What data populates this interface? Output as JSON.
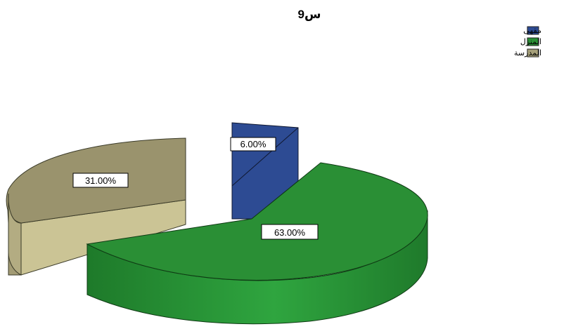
{
  "chart_data": {
    "type": "pie",
    "title": "س9",
    "categories": [
      "مقهى",
      "المنزل",
      "المدرسة"
    ],
    "values": [
      6.0,
      63.0,
      31.0
    ],
    "labels": [
      "6.00%",
      "63.00%",
      "31.00%"
    ],
    "colors": [
      "#2d4b93",
      "#2a8f35",
      "#a6a07a"
    ],
    "legend_position": "top-right",
    "exploded": true,
    "three_d": true
  }
}
